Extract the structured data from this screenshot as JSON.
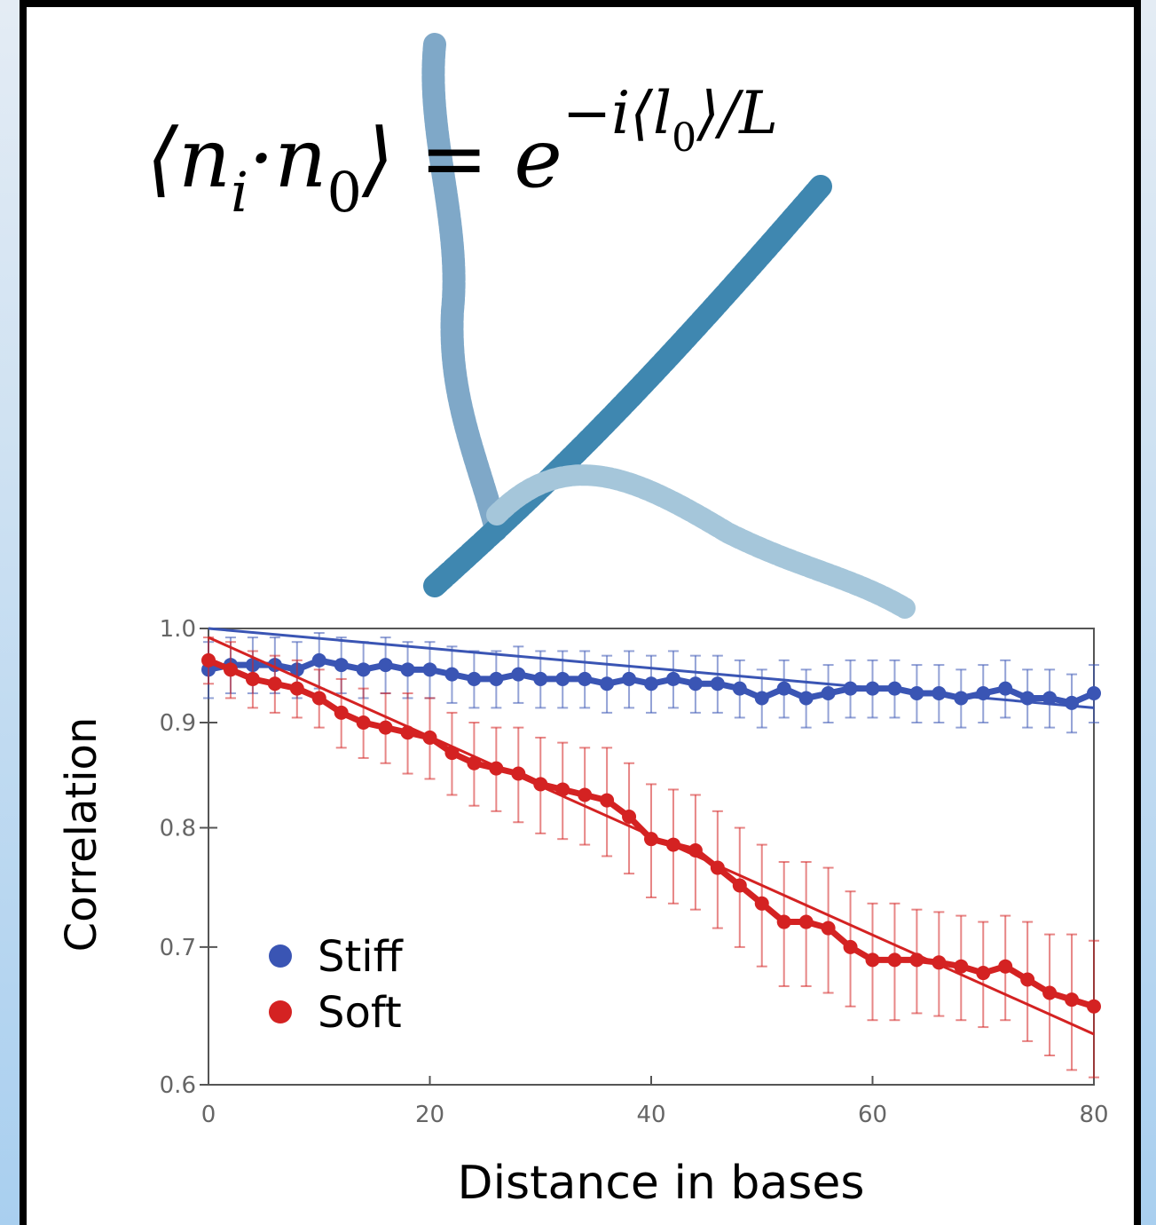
{
  "formula": [
    "⟨n",
    "i",
    "·n",
    "0",
    "⟩ = e",
    "−i⟨l",
    "0",
    "⟩/L"
  ],
  "chart_data": {
    "type": "line",
    "x_label": "Distance in bases",
    "y_label": "Correlation",
    "log_y": true,
    "xlim": [
      0,
      80
    ],
    "ylim": [
      0.6,
      1.0
    ],
    "xticks": [
      0,
      20,
      40,
      60,
      80
    ],
    "yticks": [
      0.6,
      0.7,
      0.8,
      0.9,
      {
        "value": 1.0,
        "label": "1.0"
      }
    ],
    "x": [
      0,
      2,
      4,
      6,
      8,
      10,
      12,
      14,
      16,
      18,
      20,
      22,
      24,
      26,
      28,
      30,
      32,
      34,
      36,
      38,
      40,
      42,
      44,
      46,
      48,
      50,
      52,
      54,
      56,
      58,
      60,
      62,
      64,
      66,
      68,
      70,
      72,
      74,
      76,
      78,
      80
    ],
    "series": [
      {
        "name": "Stiff",
        "color": "#3a55b4",
        "values": [
          0.955,
          0.96,
          0.96,
          0.96,
          0.955,
          0.965,
          0.96,
          0.955,
          0.96,
          0.955,
          0.955,
          0.95,
          0.945,
          0.945,
          0.95,
          0.945,
          0.945,
          0.945,
          0.94,
          0.945,
          0.94,
          0.945,
          0.94,
          0.94,
          0.935,
          0.925,
          0.935,
          0.925,
          0.93,
          0.935,
          0.935,
          0.935,
          0.93,
          0.93,
          0.925,
          0.93,
          0.935,
          0.925,
          0.925,
          0.92,
          0.93
        ],
        "errors": [
          0.03,
          0.03,
          0.03,
          0.03,
          0.03,
          0.03,
          0.03,
          0.03,
          0.03,
          0.03,
          0.03,
          0.03,
          0.03,
          0.03,
          0.03,
          0.03,
          0.03,
          0.03,
          0.03,
          0.03,
          0.03,
          0.03,
          0.03,
          0.03,
          0.03,
          0.03,
          0.03,
          0.03,
          0.03,
          0.03,
          0.03,
          0.03,
          0.03,
          0.03,
          0.03,
          0.03,
          0.03,
          0.03,
          0.03,
          0.03,
          0.03
        ],
        "fit_x": [
          0,
          80
        ],
        "fit": [
          1.0,
          0.915
        ]
      },
      {
        "name": "Soft",
        "color": "#d42222",
        "values": [
          0.965,
          0.955,
          0.945,
          0.94,
          0.935,
          0.925,
          0.91,
          0.9,
          0.895,
          0.89,
          0.885,
          0.87,
          0.86,
          0.855,
          0.85,
          0.84,
          0.835,
          0.83,
          0.825,
          0.81,
          0.79,
          0.785,
          0.78,
          0.765,
          0.75,
          0.735,
          0.72,
          0.72,
          0.715,
          0.7,
          0.69,
          0.69,
          0.69,
          0.688,
          0.685,
          0.68,
          0.685,
          0.675,
          0.665,
          0.66,
          0.655
        ],
        "errors": [
          0.025,
          0.03,
          0.03,
          0.03,
          0.03,
          0.03,
          0.035,
          0.035,
          0.035,
          0.04,
          0.04,
          0.04,
          0.04,
          0.04,
          0.045,
          0.045,
          0.045,
          0.045,
          0.05,
          0.05,
          0.05,
          0.05,
          0.05,
          0.05,
          0.05,
          0.05,
          0.05,
          0.05,
          0.05,
          0.045,
          0.045,
          0.045,
          0.04,
          0.04,
          0.04,
          0.04,
          0.04,
          0.045,
          0.045,
          0.05,
          0.05
        ],
        "fit_x": [
          0,
          80
        ],
        "fit": [
          0.99,
          0.635
        ]
      }
    ]
  }
}
